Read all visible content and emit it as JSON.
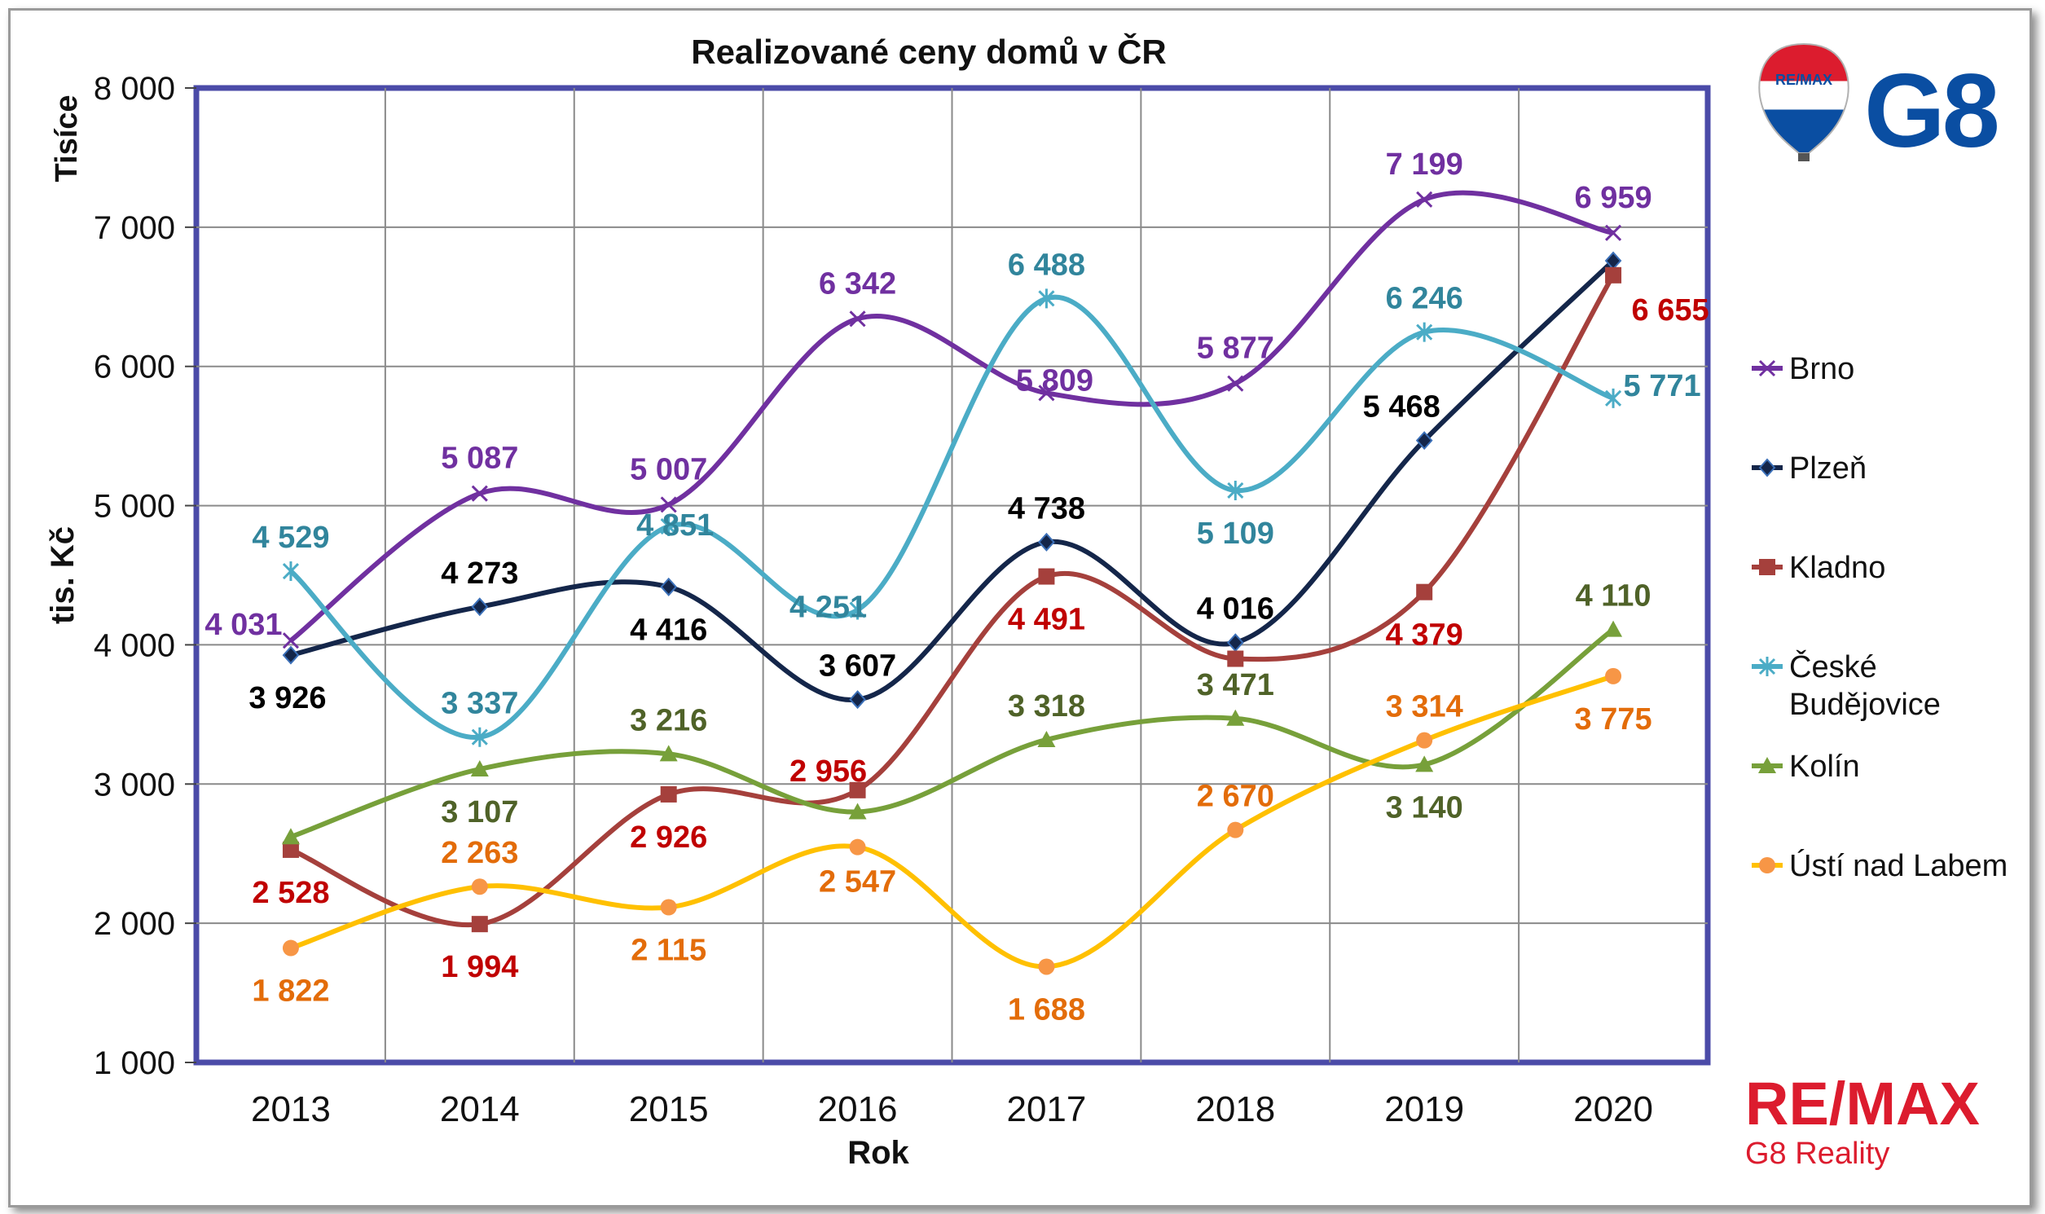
{
  "chart_data": {
    "type": "line",
    "title": "Realizované ceny domů  v ČR",
    "xlabel": "Rok",
    "ylabel": "tis. Kč",
    "yunit": "Tisíce",
    "ylim": [
      1000,
      8000
    ],
    "yticks": [
      1000,
      2000,
      3000,
      4000,
      5000,
      6000,
      7000,
      8000
    ],
    "ytick_labels": [
      "1 000",
      "2 000",
      "3 000",
      "4 000",
      "5 000",
      "6 000",
      "7 000",
      "8 000"
    ],
    "categories": [
      "2013",
      "2014",
      "2015",
      "2016",
      "2017",
      "2018",
      "2019",
      "2020"
    ],
    "grid": true,
    "legend_position": "right",
    "series": [
      {
        "name": "Brno",
        "color": "#7030A0",
        "label_color": "#7030A0",
        "marker": "x",
        "values": [
          4031,
          5087,
          5007,
          6342,
          5809,
          5877,
          7199,
          6959
        ],
        "labels": [
          "4 031",
          "5 087",
          "5 007",
          "6 342",
          "5 809",
          "5 877",
          "7 199",
          "6 959"
        ]
      },
      {
        "name": "Plzeň",
        "color": "#14264A",
        "label_color": "#000000",
        "marker": "diamond",
        "values": [
          3926,
          4273,
          4416,
          3607,
          4738,
          4016,
          5468,
          6759
        ],
        "labels": [
          "3 926",
          "4 273",
          "4 416",
          "3 607",
          "4 738",
          "4 016",
          "5 468",
          ""
        ]
      },
      {
        "name": "Kladno",
        "color": "#A5403C",
        "label_color": "#C00000",
        "marker": "square",
        "values": [
          2528,
          1994,
          2926,
          2956,
          4491,
          3900,
          4379,
          6655
        ],
        "labels": [
          "2 528",
          "1 994",
          "2 926",
          "2 956",
          "4 491",
          "",
          "4 379",
          "6 655"
        ]
      },
      {
        "name": "České Budějovice",
        "name_lines": [
          "České",
          "Budějovice"
        ],
        "color": "#4BACC6",
        "label_color": "#31859C",
        "marker": "star",
        "values": [
          4529,
          3337,
          4851,
          4251,
          6488,
          5109,
          6246,
          5771
        ],
        "labels": [
          "4 529",
          "3 337",
          "4 851",
          "4 251",
          "6 488",
          "5 109",
          "6 246",
          "5 771"
        ]
      },
      {
        "name": "Kolín",
        "color": "#77A03A",
        "label_color": "#4F6228",
        "marker": "triangle",
        "values": [
          2620,
          3107,
          3216,
          2800,
          3318,
          3471,
          3140,
          4110
        ],
        "labels": [
          "",
          "3 107",
          "3 216",
          "",
          "3 318",
          "3 471",
          "3 140",
          "4 110"
        ]
      },
      {
        "name": "Ústí nad Labem",
        "color": "#FFC000",
        "label_color": "#E36C09",
        "marker": "circle",
        "marker_color": "#F79646",
        "values": [
          1822,
          2263,
          2115,
          2547,
          1688,
          2670,
          3314,
          3775
        ],
        "labels": [
          "1 822",
          "2 263",
          "2 115",
          "2 547",
          "1 688",
          "2 670",
          "3 314",
          "3 775"
        ]
      }
    ]
  },
  "branding": {
    "logo_text": "G8",
    "balloon_text": "RE/MAX",
    "brand_name": "RE/MAX",
    "brand_sub": "G8 Reality",
    "brand_color": "#DC1C2E",
    "logo_color": "#0A4EA2"
  }
}
